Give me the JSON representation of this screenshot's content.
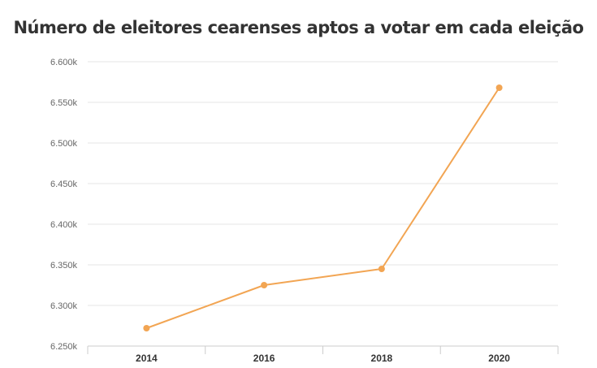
{
  "chart_data": {
    "type": "line",
    "title": "Número de eleitores cearenses aptos a votar em cada eleição",
    "xlabel": "",
    "ylabel": "",
    "categories": [
      "2014",
      "2016",
      "2018",
      "2020"
    ],
    "series": [
      {
        "values": [
          6272000,
          6325000,
          6345000,
          6568000
        ]
      }
    ],
    "ylim": [
      6250000,
      6600000
    ],
    "yticks": [
      6250000,
      6300000,
      6350000,
      6400000,
      6450000,
      6500000,
      6550000,
      6600000
    ],
    "ytick_labels": [
      "6.250k",
      "6.300k",
      "6.350k",
      "6.400k",
      "6.450k",
      "6.500k",
      "6.550k",
      "6.600k"
    ],
    "grid": true,
    "legend": "none",
    "colors": {
      "line": "#f2a553",
      "grid": "#e6e6e6",
      "axis": "#cccccc"
    }
  }
}
